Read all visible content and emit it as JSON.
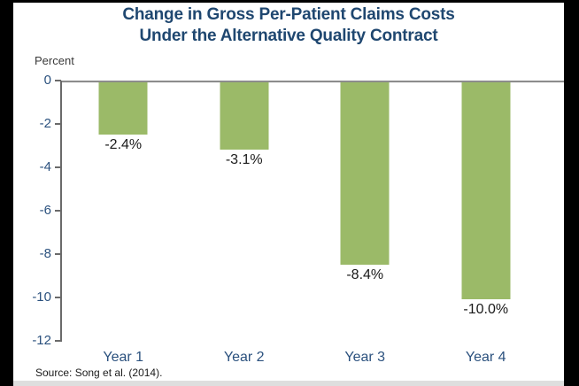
{
  "window": {
    "letterbox_color": "#000000",
    "player_strip_color": "#dedede",
    "background": "#ffffff"
  },
  "title": {
    "line1": "Change in Gross Per-Patient Claims Costs",
    "line2": "Under the Alternative Quality Contract"
  },
  "unit_label": "Percent",
  "source_note": "Source: Song et al. (2014).",
  "colors": {
    "bar": "#9BBA68",
    "title_text": "#1F4770",
    "axis_text": "#2B517E",
    "data_label_text": "#1a1a1a"
  },
  "chart_data": {
    "type": "bar",
    "title": "Change in Gross Per-Patient Claims Costs Under the Alternative Quality Contract",
    "categories": [
      "Year 1",
      "Year 2",
      "Year 3",
      "Year 4"
    ],
    "values": [
      -2.4,
      -3.1,
      -8.4,
      -10.0
    ],
    "data_labels": [
      "-2.4%",
      "-3.1%",
      "-8.4%",
      "-10.0%"
    ],
    "ylabel": "Percent",
    "ylim": [
      -12,
      0
    ],
    "yticks": [
      0,
      -2,
      -4,
      -6,
      -8,
      -10,
      -12
    ],
    "grid": false,
    "legend": false,
    "bar_color": "#9BBA68"
  }
}
